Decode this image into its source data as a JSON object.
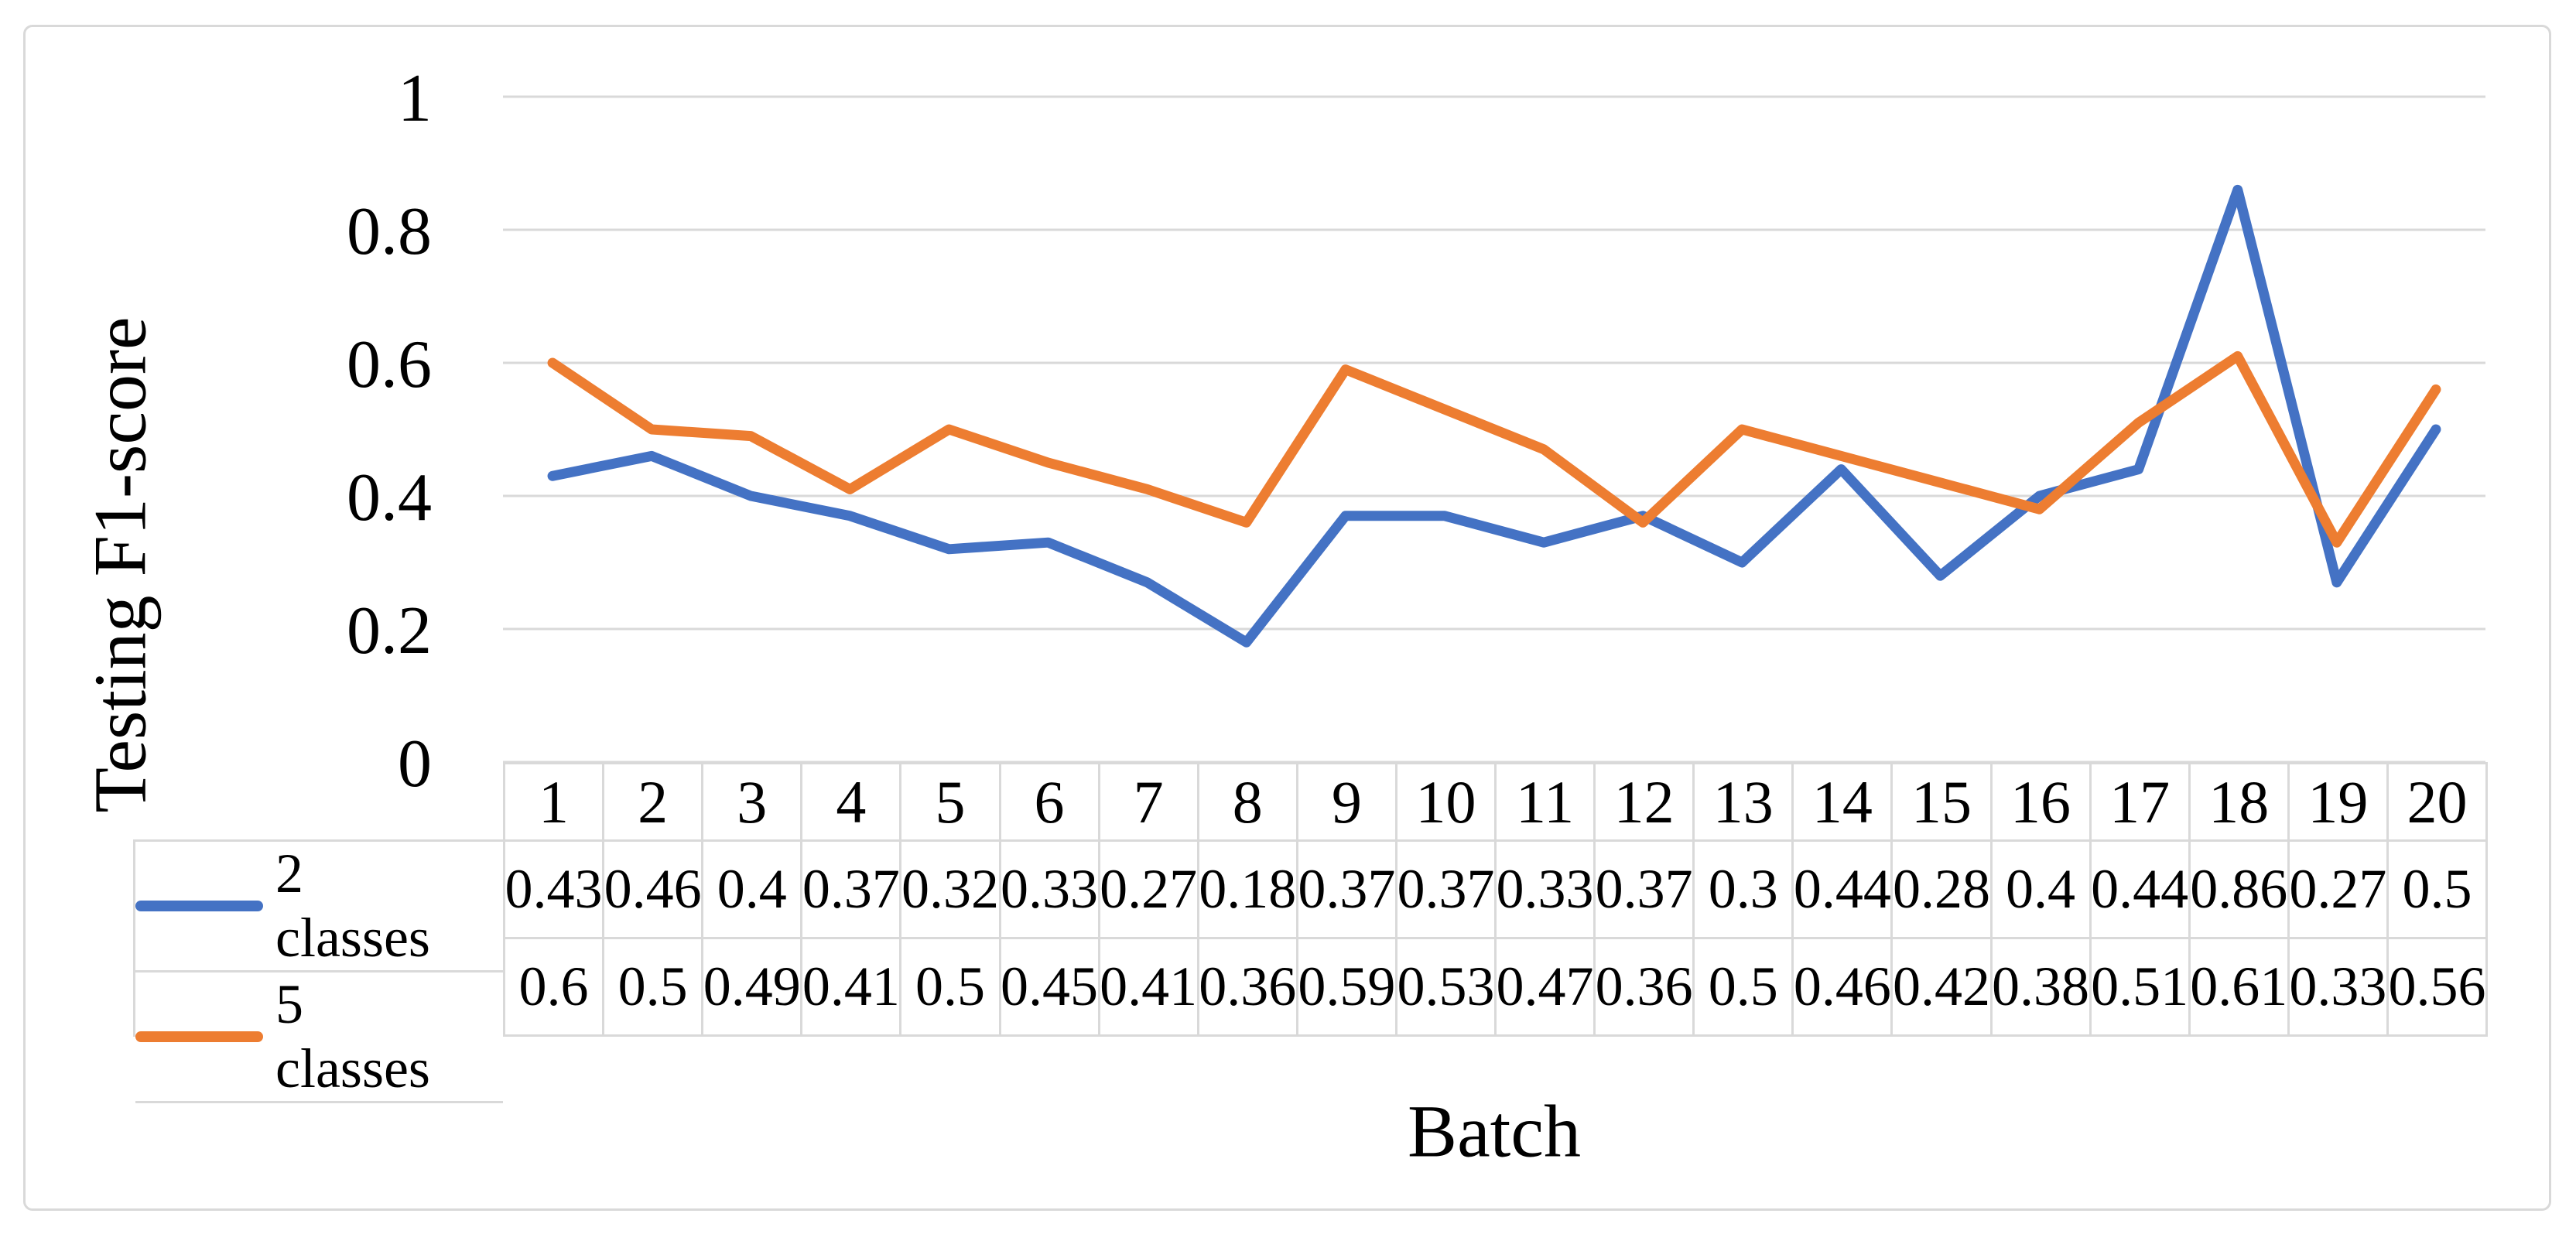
{
  "figure": {
    "y_axis_title": "Testing F1-score",
    "x_axis_title": "Batch"
  },
  "chart_data": {
    "type": "line",
    "title": "",
    "xlabel": "Batch",
    "ylabel": "Testing F1-score",
    "x": [
      1,
      2,
      3,
      4,
      5,
      6,
      7,
      8,
      9,
      10,
      11,
      12,
      13,
      14,
      15,
      16,
      17,
      18,
      19,
      20
    ],
    "series": [
      {
        "name": "2 classes",
        "color": "#4472C4",
        "values": [
          0.43,
          0.46,
          0.4,
          0.37,
          0.32,
          0.33,
          0.27,
          0.18,
          0.37,
          0.37,
          0.33,
          0.37,
          0.3,
          0.44,
          0.28,
          0.4,
          0.44,
          0.86,
          0.27,
          0.5
        ]
      },
      {
        "name": "5 classes",
        "color": "#ED7D31",
        "values": [
          0.6,
          0.5,
          0.49,
          0.41,
          0.5,
          0.45,
          0.41,
          0.36,
          0.59,
          0.53,
          0.47,
          0.36,
          0.5,
          0.46,
          0.42,
          0.38,
          0.51,
          0.61,
          0.33,
          0.56
        ]
      }
    ],
    "ylim": [
      0,
      1
    ],
    "y_ticks": [
      0,
      0.2,
      0.4,
      0.6,
      0.8,
      1
    ],
    "grid": true,
    "gridline_color": "#d9d9d9",
    "legend_position": "data-table-left",
    "data_table_shown": true
  }
}
